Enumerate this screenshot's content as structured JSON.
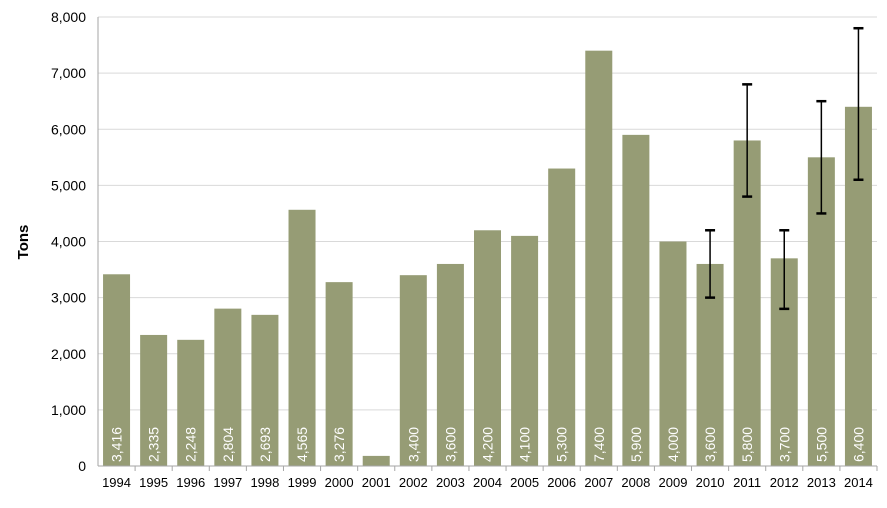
{
  "chart_data": {
    "type": "bar",
    "title": "",
    "xlabel": "",
    "ylabel": "Tons",
    "ylim": [
      0,
      8000
    ],
    "yticks": [
      0,
      1000,
      2000,
      3000,
      4000,
      5000,
      6000,
      7000,
      8000
    ],
    "ytick_labels": [
      "0",
      "1,000",
      "2,000",
      "3,000",
      "4,000",
      "5,000",
      "6,000",
      "7,000",
      "8,000"
    ],
    "grid": true,
    "legend": "none",
    "categories": [
      "1994",
      "1995",
      "1996",
      "1997",
      "1998",
      "1999",
      "2000",
      "2001",
      "2002",
      "2003",
      "2004",
      "2005",
      "2006",
      "2007",
      "2008",
      "2009",
      "2010",
      "2011",
      "2012",
      "2013",
      "2014"
    ],
    "values": [
      3416,
      2335,
      2248,
      2804,
      2693,
      4565,
      3276,
      180,
      3400,
      3600,
      4200,
      4100,
      5300,
      7400,
      5900,
      4000,
      3600,
      5800,
      3700,
      5500,
      6400
    ],
    "value_labels": [
      "3,416",
      "2,335",
      "2,248",
      "2,804",
      "2,693",
      "4,565",
      "3,276",
      "",
      "3,400",
      "3,600",
      "4,200",
      "4,100",
      "5,300",
      "7,400",
      "5,900",
      "4,000",
      "3,600",
      "5,800",
      "3,700",
      "5,500",
      "6,400"
    ],
    "error_bars": [
      {
        "category": "2010",
        "low": 3000,
        "high": 4200
      },
      {
        "category": "2011",
        "low": 4800,
        "high": 6800
      },
      {
        "category": "2012",
        "low": 2800,
        "high": 4200
      },
      {
        "category": "2013",
        "low": 4500,
        "high": 6500
      },
      {
        "category": "2014",
        "low": 5100,
        "high": 7800
      }
    ],
    "colors": {
      "bar": "#969C75",
      "grid": "#D9D9D9",
      "axis": "#A6A6A6",
      "error_bar": "#000000",
      "bar_label": "#FFFFFF"
    }
  }
}
